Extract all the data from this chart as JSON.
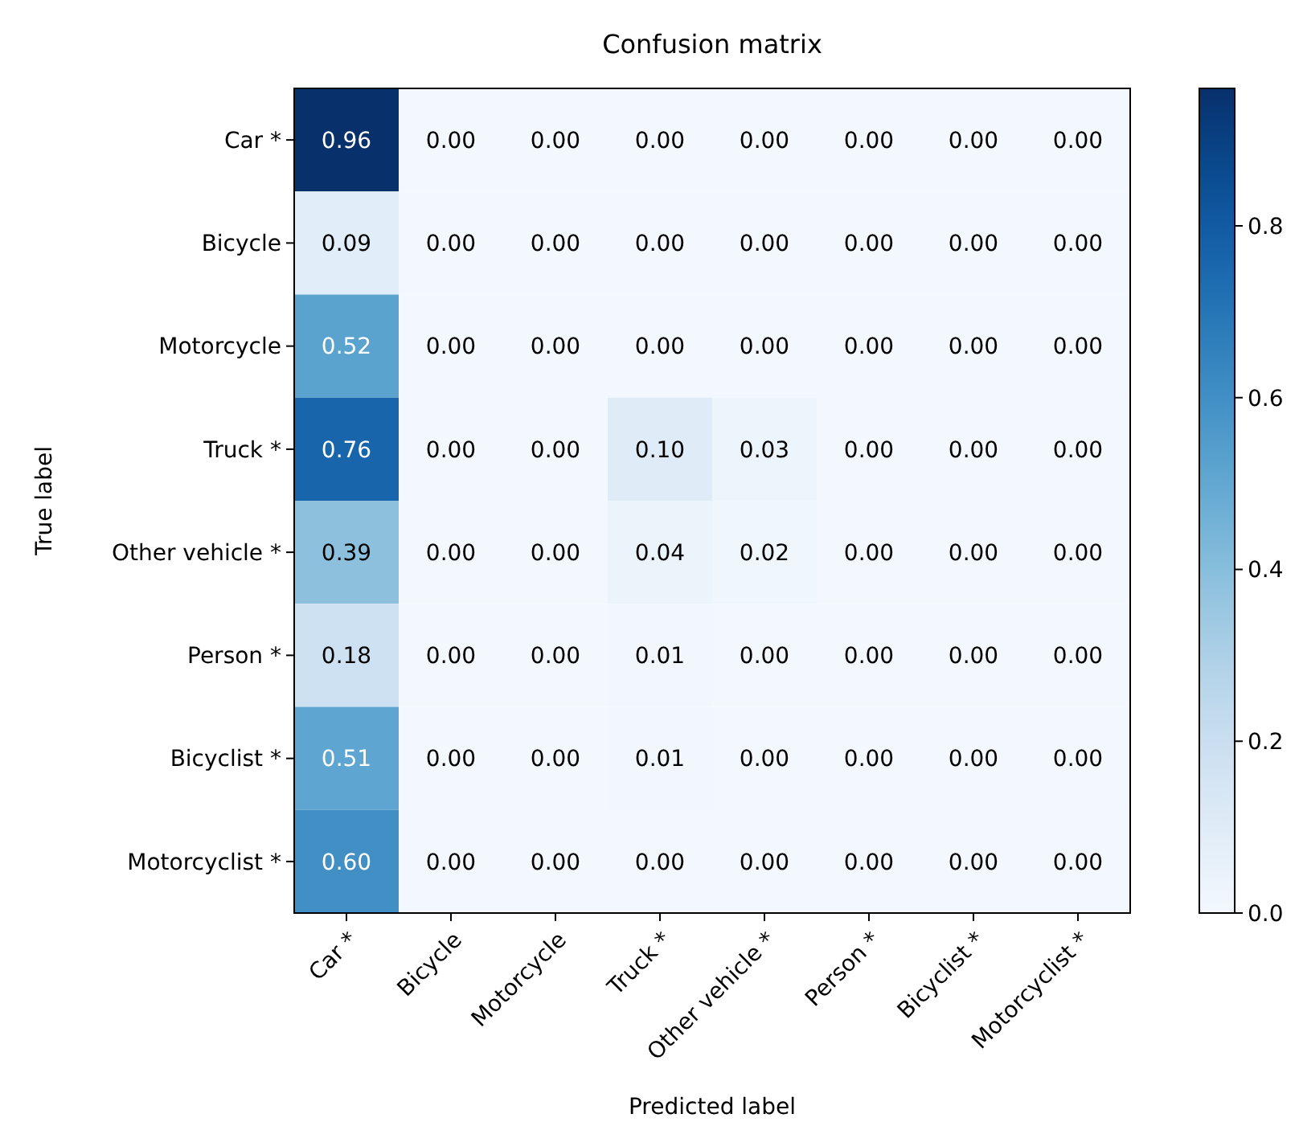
{
  "chart_data": {
    "type": "heatmap",
    "title": "Confusion matrix",
    "xlabel": "Predicted label",
    "ylabel": "True label",
    "categories": [
      "Car *",
      "Bicycle",
      "Motorcycle",
      "Truck *",
      "Other vehicle *",
      "Person *",
      "Bicyclist *",
      "Motorcyclist *"
    ],
    "y_categories": [
      "Car *",
      "Bicycle",
      "Motorcycle",
      "Truck *",
      "Other vehicle *",
      "Person *",
      "Bicyclist *",
      "Motorcyclist *"
    ],
    "cells": [
      [
        0.96,
        0,
        0,
        0,
        0,
        0,
        0,
        0
      ],
      [
        0.09,
        0,
        0,
        0,
        0,
        0,
        0,
        0
      ],
      [
        0.52,
        0,
        0,
        0,
        0,
        0,
        0,
        0
      ],
      [
        0.76,
        0,
        0,
        0.1,
        0.03,
        0,
        0,
        0
      ],
      [
        0.39,
        0,
        0,
        0.04,
        0.02,
        0,
        0,
        0
      ],
      [
        0.18,
        0,
        0,
        0.01,
        0,
        0,
        0,
        0
      ],
      [
        0.51,
        0,
        0,
        0.01,
        0,
        0,
        0,
        0
      ],
      [
        0.6,
        0,
        0,
        0,
        0,
        0,
        0,
        0
      ]
    ],
    "cell_labels": [
      [
        "0.96",
        "0.00",
        "0.00",
        "0.00",
        "0.00",
        "0.00",
        "0.00",
        "0.00"
      ],
      [
        "0.09",
        "0.00",
        "0.00",
        "0.00",
        "0.00",
        "0.00",
        "0.00",
        "0.00"
      ],
      [
        "0.52",
        "0.00",
        "0.00",
        "0.00",
        "0.00",
        "0.00",
        "0.00",
        "0.00"
      ],
      [
        "0.76",
        "0.00",
        "0.00",
        "0.10",
        "0.03",
        "0.00",
        "0.00",
        "0.00"
      ],
      [
        "0.39",
        "0.00",
        "0.00",
        "0.04",
        "0.02",
        "0.00",
        "0.00",
        "0.00"
      ],
      [
        "0.18",
        "0.00",
        "0.00",
        "0.01",
        "0.00",
        "0.00",
        "0.00",
        "0.00"
      ],
      [
        "0.51",
        "0.00",
        "0.00",
        "0.01",
        "0.00",
        "0.00",
        "0.00",
        "0.00"
      ],
      [
        "0.60",
        "0.00",
        "0.00",
        "0.00",
        "0.00",
        "0.00",
        "0.00",
        "0.00"
      ]
    ],
    "clim": [
      0,
      0.96
    ],
    "cticks": [
      {
        "value": 0,
        "label": "0.0"
      },
      {
        "value": 0.2,
        "label": "0.2"
      },
      {
        "value": 0.4,
        "label": "0.4"
      },
      {
        "value": 0.6,
        "label": "0.6"
      },
      {
        "value": 0.8,
        "label": "0.8"
      }
    ]
  }
}
